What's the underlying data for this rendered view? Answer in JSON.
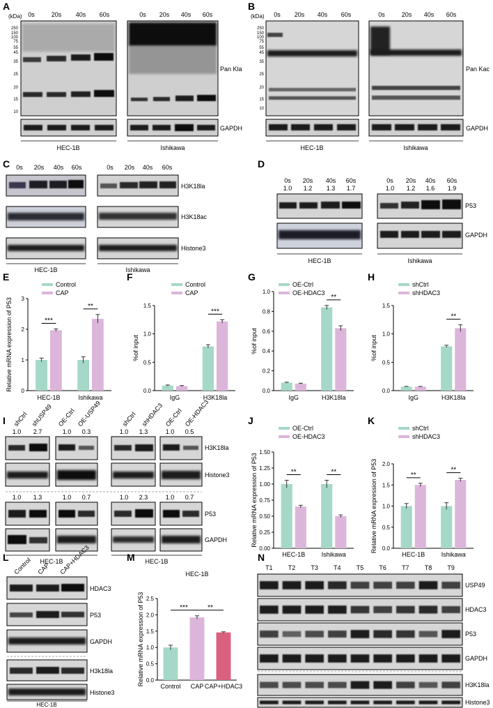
{
  "colors": {
    "control": "#a5d8c8",
    "treated": "#dcb6da",
    "combo": "#d9607f",
    "blot_bg": "#d6d6d6",
    "band": "#1b1b1b"
  },
  "panels": {
    "A": {
      "letter": "A",
      "kda_label": "(kDa)",
      "markers": [
        "250",
        "150",
        "100",
        "75",
        "55",
        "45",
        "35",
        "25",
        "20",
        "15",
        "10"
      ],
      "timepoints": [
        "0s",
        "20s",
        "40s",
        "60s"
      ],
      "protein": "Pan Kla",
      "loading": "GAPDH",
      "cell_lines": [
        "HEC-1B",
        "Ishikawa"
      ]
    },
    "B": {
      "letter": "B",
      "kda_label": "(kDa)",
      "markers": [
        "250",
        "150",
        "100",
        "75",
        "55",
        "45",
        "35",
        "25",
        "20",
        "15",
        "10"
      ],
      "timepoints": [
        "0s",
        "20s",
        "40s",
        "60s"
      ],
      "protein": "Pan Kac",
      "loading": "GAPDH",
      "cell_lines": [
        "HEC-1B",
        "Ishikawa"
      ]
    },
    "C": {
      "letter": "C",
      "timepoints": [
        "0s",
        "20s",
        "40s",
        "60s"
      ],
      "rows": [
        "H3K18la",
        "H3K18ac",
        "Histone3"
      ],
      "cell_lines": [
        "HEC-1B",
        "Ishikawa"
      ]
    },
    "D": {
      "letter": "D",
      "timepoints": [
        "0s",
        "20s",
        "40s",
        "60s"
      ],
      "ratios_hec": [
        "1.0",
        "1.2",
        "1.3",
        "1.7"
      ],
      "ratios_ish": [
        "1.0",
        "1.2",
        "1.6",
        "1.9"
      ],
      "rows": [
        "P53",
        "GAPDH"
      ],
      "cell_lines": [
        "HEC-1B",
        "Ishikawa"
      ]
    },
    "I": {
      "letter": "I",
      "group1_lanes": [
        "shCtrl",
        "shUSP49"
      ],
      "group2_lanes": [
        "OE-Ctrl",
        "OE-USP49"
      ],
      "group3_lanes": [
        "shCtrl",
        "shHDAC3"
      ],
      "group4_lanes": [
        "OE-Ctrl",
        "OE-HDAC3"
      ],
      "ratios_top": [
        "1.0",
        "2.7",
        "1.0",
        "0.3",
        "1.0",
        "1.3",
        "1.0",
        "0.5"
      ],
      "ratios_mid": [
        "1.0",
        "1.3",
        "1.0",
        "0.7",
        "1.0",
        "2.3",
        "1.0",
        "0.7"
      ],
      "rows": [
        "H3K18la",
        "Histone3",
        "P53",
        "GAPDH"
      ],
      "cell_lines": [
        "HEC-1B",
        "HEC-1B"
      ]
    },
    "L": {
      "letter": "L",
      "lanes": [
        "Control",
        "CAP",
        "CAP+HDAC3"
      ],
      "rows": [
        "HDAC3",
        "P53",
        "GAPDH",
        "H3k18la",
        "Histone3"
      ],
      "cell_line": "HEC-1B"
    },
    "N": {
      "letter": "N",
      "lanes": [
        "T1",
        "T2",
        "T3",
        "T4",
        "T5",
        "T6",
        "T7",
        "T8",
        "T9"
      ],
      "rows": [
        "USP49",
        "HDAC3",
        "P53",
        "GAPDH",
        "H3K18la",
        "Histone3"
      ]
    }
  },
  "chart_data": [
    {
      "id": "E",
      "type": "bar",
      "letter": "E",
      "ylabel": "Relative mRNA expression of P53",
      "ylim": [
        0,
        3
      ],
      "yticks": [
        "0",
        "1",
        "2",
        "3"
      ],
      "categories": [
        "HEC-1B",
        "Ishikawa"
      ],
      "series": [
        {
          "name": "Control",
          "values": [
            1.0,
            1.0
          ],
          "errors": [
            0.06,
            0.1
          ]
        },
        {
          "name": "CAP",
          "values": [
            1.97,
            2.34
          ],
          "errors": [
            0.04,
            0.14
          ]
        }
      ],
      "significance": [
        "***",
        "**"
      ]
    },
    {
      "id": "F",
      "type": "bar",
      "letter": "F",
      "ylabel": "%of input",
      "ylim": [
        0,
        1.5
      ],
      "yticks": [
        "0.0",
        "0.5",
        "1.0",
        "1.5"
      ],
      "categories": [
        "IgG",
        "H3K18la"
      ],
      "series": [
        {
          "name": "Control",
          "values": [
            0.09,
            0.78
          ],
          "errors": [
            0.01,
            0.03
          ]
        },
        {
          "name": "CAP",
          "values": [
            0.08,
            1.22
          ],
          "errors": [
            0.01,
            0.03
          ]
        }
      ],
      "significance": [
        "",
        "***"
      ]
    },
    {
      "id": "G",
      "type": "bar",
      "letter": "G",
      "ylabel": "%of input",
      "ylim": [
        0,
        1.0
      ],
      "yticks": [
        "0.0",
        "0.2",
        "0.4",
        "0.6",
        "0.8",
        "1.0"
      ],
      "categories": [
        "IgG",
        "H3K18la"
      ],
      "series": [
        {
          "name": "OE-Ctrl",
          "values": [
            0.08,
            0.84
          ],
          "errors": [
            0.005,
            0.02
          ]
        },
        {
          "name": "OE-HDAC3",
          "values": [
            0.07,
            0.63
          ],
          "errors": [
            0.005,
            0.025
          ]
        }
      ],
      "significance": [
        "",
        "**"
      ]
    },
    {
      "id": "H",
      "type": "bar",
      "letter": "H",
      "ylabel": "%of input",
      "ylim": [
        0,
        1.5
      ],
      "yticks": [
        "0.0",
        "0.5",
        "1.0",
        "1.5"
      ],
      "categories": [
        "IgG",
        "H3K18la"
      ],
      "series": [
        {
          "name": "shCtrl",
          "values": [
            0.07,
            0.78
          ],
          "errors": [
            0.005,
            0.02
          ]
        },
        {
          "name": "shHDAC3",
          "values": [
            0.07,
            1.1
          ],
          "errors": [
            0.005,
            0.06
          ]
        }
      ],
      "significance": [
        "",
        "**"
      ]
    },
    {
      "id": "J",
      "type": "bar",
      "letter": "J",
      "ylabel": "Relative mRNA expression of P53",
      "ylim": [
        0,
        1.5
      ],
      "yticks": [
        "0.00",
        "0.25",
        "0.50",
        "0.75",
        "1.00",
        "1.25",
        "1.50"
      ],
      "categories": [
        "HEC-1B",
        "Ishikawa"
      ],
      "series": [
        {
          "name": "OE-Ctrl",
          "values": [
            1.0,
            1.0
          ],
          "errors": [
            0.06,
            0.06
          ]
        },
        {
          "name": "OE-HDAC3",
          "values": [
            0.65,
            0.5
          ],
          "errors": [
            0.02,
            0.02
          ]
        }
      ],
      "significance": [
        "**",
        "**"
      ]
    },
    {
      "id": "K",
      "type": "bar",
      "letter": "K",
      "ylabel": "Relative mRNA expression of P53",
      "ylim": [
        0,
        2.0
      ],
      "yticks": [
        "0.0",
        "0.5",
        "1.0",
        "1.5",
        "2.0"
      ],
      "categories": [
        "HEC-1B",
        "Ishikawa"
      ],
      "series": [
        {
          "name": "shCtrl",
          "values": [
            1.0,
            1.0
          ],
          "errors": [
            0.06,
            0.08
          ]
        },
        {
          "name": "shHDAC3",
          "values": [
            1.5,
            1.62
          ],
          "errors": [
            0.04,
            0.04
          ]
        }
      ],
      "significance": [
        "**",
        "**"
      ]
    },
    {
      "id": "M",
      "type": "bar",
      "letter": "M",
      "title": "HEC-1B",
      "ylabel": "Relative mRNA expression of P53",
      "ylim": [
        0,
        2.5
      ],
      "yticks": [
        "0.0",
        "0.5",
        "1.0",
        "1.5",
        "2.0",
        "2.5"
      ],
      "categories": [
        "Control",
        "CAP",
        "CAP+HDAC3"
      ],
      "values": [
        1.0,
        1.92,
        1.46
      ],
      "errors": [
        0.07,
        0.05,
        0.02
      ],
      "significance": [
        {
          "between": [
            0,
            1
          ],
          "label": "***"
        },
        {
          "between": [
            1,
            2
          ],
          "label": "**"
        }
      ]
    }
  ]
}
